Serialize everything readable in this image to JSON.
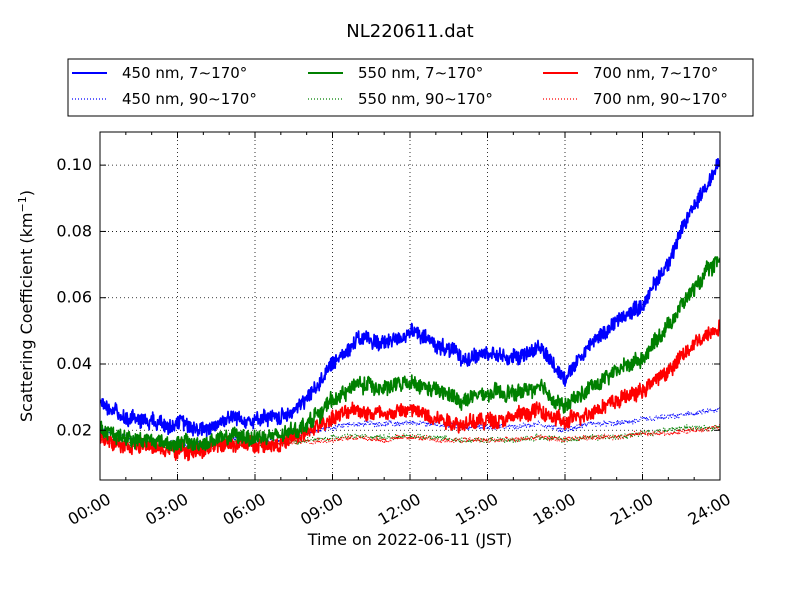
{
  "chart_data": {
    "type": "line",
    "title": "NL220611.dat",
    "xlabel": "Time on 2022-06-11 (JST)",
    "ylabel_main": "Scattering Coefficient (km",
    "ylabel_sup": "−1",
    "ylabel_close": ")",
    "xlim": [
      "2022-06-11T00:00",
      "2022-06-12T00:00"
    ],
    "ylim": [
      0.005,
      0.11
    ],
    "grid": true,
    "legend_placement": "top",
    "x_ticks": [
      "00:00",
      "03:00",
      "06:00",
      "09:00",
      "12:00",
      "15:00",
      "18:00",
      "21:00",
      "24:00"
    ],
    "y_ticks": [
      {
        "value": 0.02,
        "label": "0.02"
      },
      {
        "value": 0.04,
        "label": "0.04"
      },
      {
        "value": 0.06,
        "label": "0.06"
      },
      {
        "value": 0.08,
        "label": "0.08"
      },
      {
        "value": 0.1,
        "label": "0.10"
      }
    ],
    "x_hours": [
      0,
      1,
      2,
      3,
      4,
      5,
      6,
      7,
      8,
      9,
      10,
      11,
      12,
      13,
      14,
      15,
      16,
      17,
      18,
      19,
      20,
      21,
      22,
      23,
      24
    ],
    "series": [
      {
        "name": "450 nm, 7∼170°",
        "color": "#0000ff",
        "style": "solid",
        "values": [
          0.028,
          0.024,
          0.023,
          0.022,
          0.02,
          0.024,
          0.023,
          0.024,
          0.029,
          0.04,
          0.048,
          0.046,
          0.05,
          0.046,
          0.042,
          0.043,
          0.042,
          0.045,
          0.036,
          0.046,
          0.053,
          0.058,
          0.071,
          0.088,
          0.101
        ]
      },
      {
        "name": "450 nm, 90∼170°",
        "color": "#0000ff",
        "style": "dotted",
        "values": [
          0.02,
          0.018,
          0.017,
          0.016,
          0.016,
          0.017,
          0.017,
          0.017,
          0.019,
          0.021,
          0.022,
          0.022,
          0.022,
          0.022,
          0.021,
          0.021,
          0.021,
          0.022,
          0.02,
          0.022,
          0.022,
          0.023,
          0.024,
          0.025,
          0.026
        ]
      },
      {
        "name": "550 nm, 7∼170°",
        "color": "#008000",
        "style": "solid",
        "values": [
          0.02,
          0.018,
          0.017,
          0.016,
          0.016,
          0.018,
          0.018,
          0.018,
          0.022,
          0.029,
          0.034,
          0.033,
          0.034,
          0.032,
          0.029,
          0.031,
          0.031,
          0.033,
          0.027,
          0.033,
          0.038,
          0.042,
          0.052,
          0.063,
          0.072
        ]
      },
      {
        "name": "550 nm, 90∼170°",
        "color": "#008000",
        "style": "dotted",
        "values": [
          0.018,
          0.016,
          0.016,
          0.015,
          0.015,
          0.016,
          0.016,
          0.016,
          0.017,
          0.018,
          0.018,
          0.018,
          0.018,
          0.018,
          0.017,
          0.017,
          0.017,
          0.018,
          0.017,
          0.018,
          0.018,
          0.019,
          0.02,
          0.021,
          0.021
        ]
      },
      {
        "name": "700 nm, 7∼170°",
        "color": "#ff0000",
        "style": "solid",
        "values": [
          0.018,
          0.016,
          0.015,
          0.014,
          0.014,
          0.016,
          0.016,
          0.016,
          0.019,
          0.024,
          0.026,
          0.025,
          0.026,
          0.024,
          0.022,
          0.023,
          0.024,
          0.026,
          0.022,
          0.026,
          0.029,
          0.032,
          0.038,
          0.046,
          0.052
        ]
      },
      {
        "name": "700 nm, 90∼170°",
        "color": "#ff0000",
        "style": "dotted",
        "values": [
          0.017,
          0.016,
          0.015,
          0.015,
          0.015,
          0.016,
          0.016,
          0.016,
          0.017,
          0.017,
          0.018,
          0.017,
          0.018,
          0.017,
          0.017,
          0.017,
          0.017,
          0.018,
          0.017,
          0.018,
          0.018,
          0.019,
          0.019,
          0.02,
          0.021
        ]
      }
    ]
  }
}
